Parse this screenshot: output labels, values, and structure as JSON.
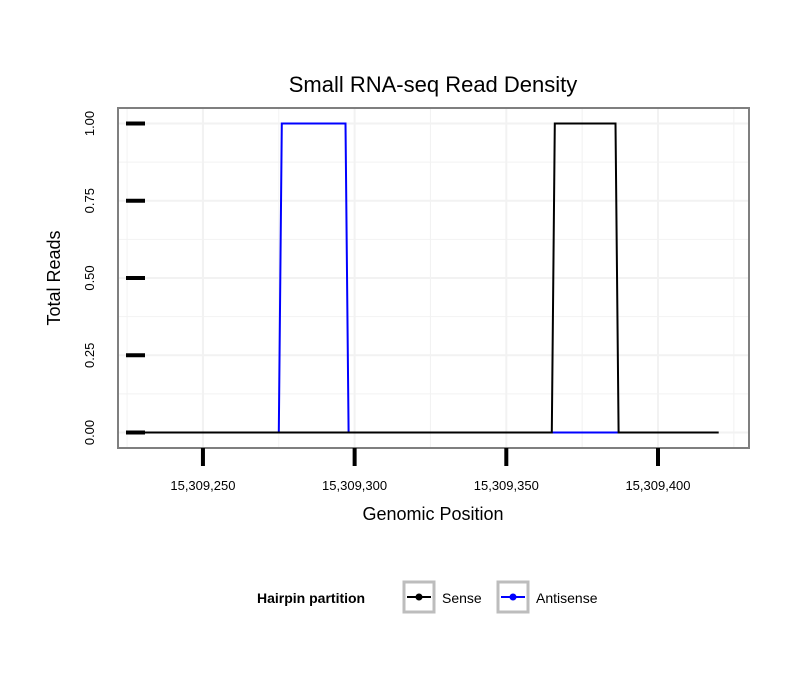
{
  "chart_data": {
    "type": "line",
    "title": "Small RNA-seq Read Density",
    "xlabel": "Genomic Position",
    "ylabel": "Total Reads",
    "xlim": [
      15309222,
      15309430
    ],
    "ylim": [
      -0.05,
      1.05
    ],
    "xticks": [
      15309250,
      15309300,
      15309350,
      15309400
    ],
    "xtick_labels": [
      "15,309,250",
      "15,309,300",
      "15,309,350",
      "15,309,400"
    ],
    "yticks": [
      0,
      0.25,
      0.5,
      0.75,
      1
    ],
    "ytick_labels": [
      "0.00",
      "0.25",
      "0.50",
      "0.75",
      "1.00"
    ],
    "grid": true,
    "legend_position": "bottom",
    "legend_title": "Hairpin partition",
    "series": [
      {
        "name": "Sense",
        "color": "#000000",
        "x": [
          15309228,
          15309365,
          15309366,
          15309386,
          15309387,
          15309420
        ],
        "y": [
          0,
          0,
          1,
          1,
          0,
          0
        ]
      },
      {
        "name": "Antisense",
        "color": "#0000ff",
        "x": [
          15309275,
          15309276,
          15309297,
          15309298,
          15309365,
          15309387
        ],
        "y": [
          0,
          1,
          1,
          0,
          0,
          0
        ]
      }
    ]
  }
}
